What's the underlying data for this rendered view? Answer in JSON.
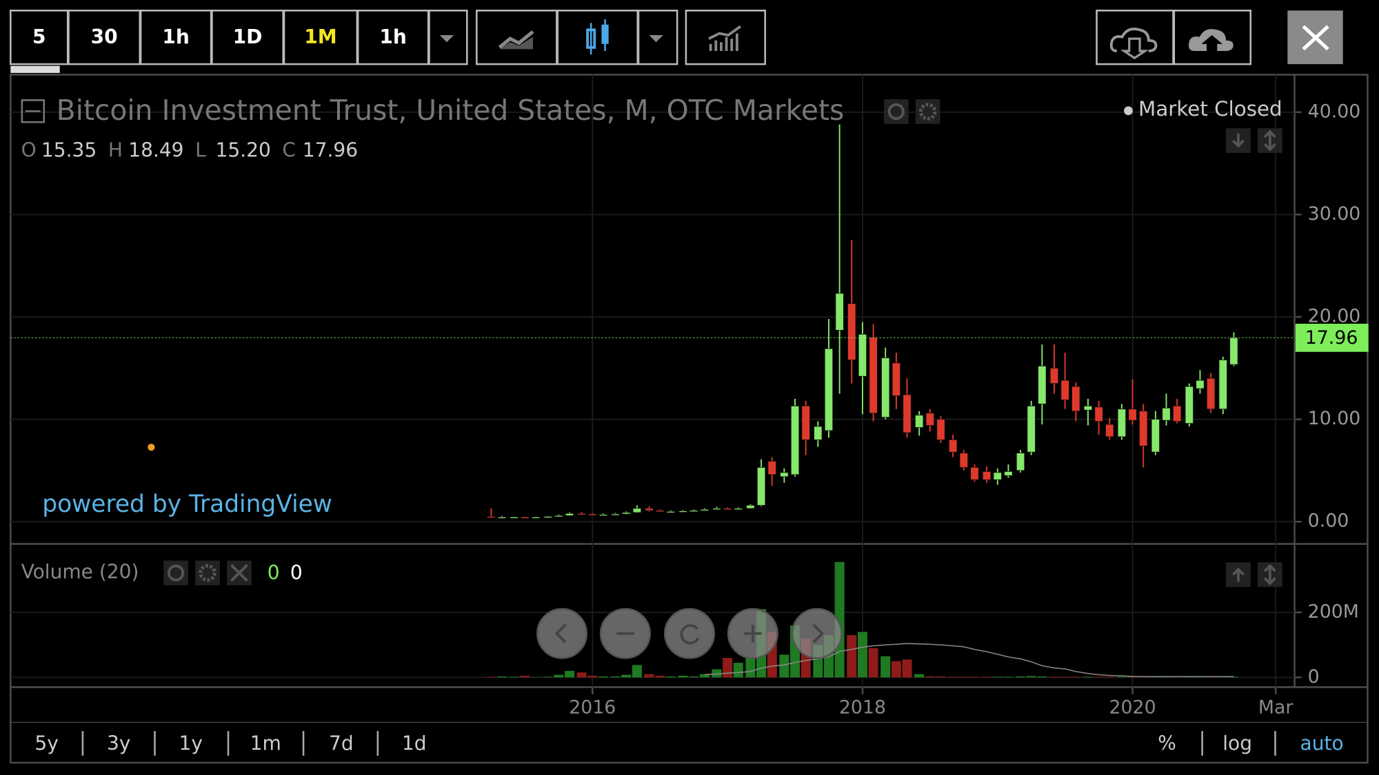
{
  "toolbar": {
    "intervals": [
      "5",
      "30",
      "1h",
      "1D",
      "1M",
      "1h"
    ],
    "active": 4
  },
  "chart_data": {
    "type": "candlestick",
    "title": "Bitcoin Investment Trust, United States, M, OTC Markets",
    "status": "Market Closed",
    "ohlc_legend": {
      "labels": [
        "O",
        "H",
        "L",
        "C"
      ],
      "values": [
        15.35,
        18.49,
        15.2,
        17.96
      ],
      "value_labels": [
        "15.35",
        "18.49",
        "15.20",
        "17.96"
      ]
    },
    "watermark": "powered by TradingView",
    "last_price": 17.96,
    "colors": {
      "up": "#86e86a",
      "down": "#e0392c",
      "volume_up": "#1f7a22",
      "volume_down": "#8e1c1a",
      "last_price": "#7ded5a",
      "ma": "#8a8a8a"
    },
    "x": [
      2015.25,
      2015.33,
      2015.42,
      2015.5,
      2015.58,
      2015.67,
      2015.75,
      2015.83,
      2015.92,
      2016.0,
      2016.08,
      2016.17,
      2016.25,
      2016.33,
      2016.42,
      2016.5,
      2016.58,
      2016.67,
      2016.75,
      2016.83,
      2016.92,
      2017.0,
      2017.08,
      2017.17,
      2017.25,
      2017.33,
      2017.42,
      2017.5,
      2017.58,
      2017.67,
      2017.75,
      2017.83,
      2017.92,
      2018.0,
      2018.08,
      2018.17,
      2018.25,
      2018.33,
      2018.42,
      2018.5,
      2018.58,
      2018.67,
      2018.75,
      2018.83,
      2018.92,
      2019.0,
      2019.08,
      2019.17,
      2019.25,
      2019.33,
      2019.42,
      2019.5,
      2019.58,
      2019.67,
      2019.75,
      2019.83,
      2019.92,
      2020.0,
      2020.08,
      2020.17,
      2020.25,
      2020.33,
      2020.42,
      2020.5,
      2020.58,
      2020.67,
      2020.75
    ],
    "open": [
      0.5,
      0.45,
      0.45,
      0.45,
      0.4,
      0.45,
      0.5,
      0.6,
      0.8,
      0.75,
      0.7,
      0.7,
      0.75,
      0.9,
      1.3,
      1.1,
      1.0,
      1.0,
      1.05,
      1.1,
      1.2,
      1.3,
      1.25,
      1.3,
      1.6,
      5.9,
      4.4,
      4.6,
      11.3,
      8,
      8.9,
      18.7,
      21.3,
      14.2,
      18,
      10.2,
      15.5,
      12.4,
      9.2,
      10.6,
      10,
      8,
      6.7,
      5.3,
      4.9,
      4.1,
      4.5,
      5,
      6.8,
      11.5,
      15,
      13.8,
      13.2,
      10.9,
      11.2,
      9.5,
      8.3,
      11,
      10.8,
      6.8,
      9.9,
      11.3,
      9.6,
      13,
      14,
      11,
      15.35
    ],
    "high": [
      1.3,
      0.55,
      0.5,
      0.5,
      0.5,
      0.55,
      0.7,
      0.9,
      0.95,
      0.85,
      0.8,
      0.85,
      1.0,
      1.6,
      1.5,
      1.2,
      1.1,
      1.15,
      1.2,
      1.3,
      1.45,
      1.4,
      1.4,
      1.7,
      6.1,
      6.3,
      5.2,
      12,
      11.8,
      9.8,
      19.8,
      38.8,
      27.5,
      19.5,
      19.3,
      17,
      16.5,
      14,
      10.8,
      11,
      10.3,
      8.5,
      7,
      5.6,
      5.4,
      5.2,
      5.6,
      7,
      11.8,
      17.3,
      17.3,
      16.5,
      13.6,
      12,
      11.8,
      10.1,
      11.5,
      13.9,
      11.5,
      10.8,
      12.5,
      12,
      13.5,
      14.8,
      14.5,
      16.1,
      18.49
    ],
    "low": [
      0.4,
      0.4,
      0.4,
      0.35,
      0.35,
      0.4,
      0.45,
      0.55,
      0.7,
      0.65,
      0.65,
      0.65,
      0.7,
      0.85,
      1.0,
      0.95,
      0.9,
      0.95,
      1.0,
      1.05,
      1.15,
      1.15,
      1.2,
      1.25,
      1.5,
      3.5,
      3.8,
      4.4,
      6.5,
      7.3,
      8.2,
      12.5,
      13.5,
      10.5,
      9.8,
      10,
      11,
      8.2,
      8.4,
      8.8,
      7.7,
      6.3,
      5,
      3.9,
      3.8,
      3.6,
      4.3,
      4.8,
      6.5,
      9.5,
      12.5,
      11,
      9.8,
      9.4,
      8.5,
      8,
      8,
      9.5,
      5.3,
      6.5,
      9.4,
      9.6,
      9.3,
      12.5,
      10.6,
      10.5,
      15.2
    ],
    "close": [
      0.45,
      0.45,
      0.45,
      0.4,
      0.45,
      0.5,
      0.6,
      0.8,
      0.75,
      0.7,
      0.7,
      0.75,
      0.9,
      1.3,
      1.1,
      1.0,
      1.0,
      1.05,
      1.1,
      1.2,
      1.3,
      1.25,
      1.3,
      1.6,
      5.3,
      4.6,
      4.8,
      11.3,
      8,
      9.3,
      16.9,
      22.3,
      15.8,
      18.3,
      10.6,
      16,
      12.3,
      8.7,
      10.4,
      9.4,
      8,
      6.8,
      5.3,
      4.1,
      4.1,
      4.8,
      4.9,
      6.7,
      11.3,
      15.2,
      13.5,
      11.9,
      10.8,
      11.3,
      9.8,
      8.3,
      11,
      9.9,
      7.4,
      10,
      11.1,
      9.8,
      13.2,
      13.8,
      11,
      15.8,
      17.96
    ],
    "ylim": [
      -2,
      43.4
    ],
    "yticks": [
      {
        "value": 0,
        "label": "0.00"
      },
      {
        "value": 10,
        "label": "10.00"
      },
      {
        "value": 20,
        "label": "20.00"
      },
      {
        "value": 30,
        "label": "30.00"
      },
      {
        "value": 40,
        "label": "40.00"
      }
    ],
    "xlim": [
      2011.69,
      2021.2
    ],
    "xticks": [
      2016,
      2018,
      2020,
      {
        "value": 2021.06,
        "label": "Mar"
      }
    ],
    "grid": true,
    "volume": {
      "label": "Volume (20)",
      "legend_values": [
        0,
        0
      ],
      "values": [
        2000000.0,
        3000000.0,
        2000000.0,
        5000000.0,
        1000000.0,
        2000000.0,
        8000000.0,
        20000000.0,
        15000000.0,
        5000000.0,
        3000000.0,
        3000000.0,
        8000000.0,
        38000000.0,
        10000000.0,
        5000000.0,
        3000000.0,
        5000000.0,
        3000000.0,
        10000000.0,
        25000000.0,
        60000000.0,
        45000000.0,
        60000000.0,
        210000000.0,
        140000000.0,
        70000000.0,
        160000000.0,
        120000000.0,
        100000000.0,
        130000000.0,
        355000000.0,
        130000000.0,
        140000000.0,
        90000000.0,
        65000000.0,
        50000000.0,
        55000000.0,
        10000000.0,
        3000000.0,
        3000000.0,
        2000000.0,
        2000000.0,
        2000000.0,
        2000000.0,
        2000000.0,
        2000000.0,
        3000000.0,
        4000000.0,
        3000000.0,
        2000000.0,
        2000000.0,
        2000000.0,
        2000000.0,
        2000000.0,
        2000000.0,
        2000000.0,
        3000000.0,
        3000000.0,
        3000000.0,
        2000000.0,
        2000000.0,
        2000000.0,
        2000000.0,
        2000000.0,
        2000000.0,
        2000000.0
      ],
      "ma": [
        null,
        null,
        null,
        null,
        null,
        null,
        null,
        null,
        null,
        null,
        null,
        null,
        null,
        null,
        null,
        null,
        null,
        null,
        null,
        9000000.0,
        10000000.0,
        13000000.0,
        15000000.0,
        18000000.0,
        28000000.0,
        35000000.0,
        38000000.0,
        46000000.0,
        52000000.0,
        57000000.0,
        63000000.0,
        80000000.0,
        86000000.0,
        93000000.0,
        97000000.0,
        100000000.0,
        102000000.0,
        104000000.0,
        103000000.0,
        102000000.0,
        100000000.0,
        97000000.0,
        94000000.0,
        86000000.0,
        79000000.0,
        71000000.0,
        63000000.0,
        57000000.0,
        48000000.0,
        36000000.0,
        29000000.0,
        26000000.0,
        18000000.0,
        12000000.0,
        8000000.0,
        6000000.0,
        5000000.0,
        3000000.0,
        2500000.0,
        2500000.0,
        2500000.0,
        2500000.0,
        2500000.0,
        2500000.0,
        2500000.0,
        2500000.0,
        2500000.0
      ],
      "ylim": [
        -30000000.0,
        408000000.0
      ],
      "yticks": [
        0,
        {
          "value": 200000000.0,
          "label": "200M"
        }
      ]
    }
  },
  "ranges": [
    "5y",
    "3y",
    "1y",
    "1m",
    "7d",
    "1d"
  ],
  "scale_options": [
    "%",
    "log",
    "auto"
  ],
  "active_scale": 2
}
